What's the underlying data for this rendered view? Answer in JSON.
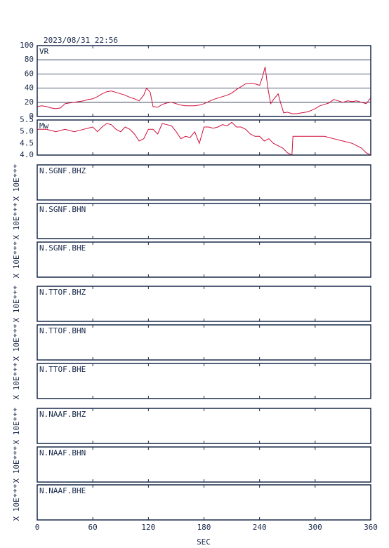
{
  "timestamp": "2023/08/31 22:56",
  "x_axis": {
    "label": "SEC",
    "xlim": [
      0,
      360
    ],
    "xticks": [
      0,
      60,
      120,
      180,
      240,
      300,
      360
    ]
  },
  "chart_data": [
    {
      "type": "line",
      "ylabel": "VR",
      "color": "#d0103c",
      "grid": true,
      "ylim": [
        0,
        100
      ],
      "yticks": [
        0,
        20,
        40,
        60,
        80,
        100
      ],
      "x": [
        0,
        5,
        10,
        15,
        20,
        25,
        30,
        35,
        40,
        45,
        50,
        55,
        60,
        65,
        70,
        75,
        80,
        85,
        90,
        95,
        100,
        105,
        110,
        115,
        118,
        122,
        125,
        130,
        135,
        140,
        145,
        150,
        155,
        160,
        165,
        170,
        175,
        180,
        185,
        190,
        195,
        200,
        205,
        210,
        215,
        220,
        225,
        230,
        235,
        240,
        243,
        246,
        249,
        252,
        255,
        260,
        263,
        266,
        270,
        275,
        280,
        285,
        290,
        295,
        300,
        305,
        310,
        315,
        320,
        325,
        330,
        335,
        340,
        345,
        350,
        355,
        360
      ],
      "values": [
        14,
        15,
        14,
        12,
        11,
        12,
        18,
        19,
        20,
        21,
        22,
        24,
        25,
        28,
        32,
        35,
        36,
        34,
        32,
        30,
        27,
        25,
        22,
        30,
        40,
        34,
        14,
        13,
        17,
        19,
        20,
        18,
        16,
        15,
        15,
        15,
        16,
        18,
        21,
        24,
        26,
        28,
        30,
        33,
        38,
        42,
        46,
        47,
        46,
        44,
        55,
        70,
        40,
        18,
        24,
        32,
        18,
        5,
        6,
        4,
        4,
        5,
        6,
        8,
        11,
        15,
        17,
        19,
        24,
        22,
        20,
        22,
        21,
        22,
        20,
        18,
        26
      ]
    },
    {
      "type": "line",
      "ylabel": "Mw",
      "color": "#d0103c",
      "grid": false,
      "ylim": [
        4,
        5.5
      ],
      "yticks": [
        {
          "value": 4,
          "label": "4.0"
        },
        4.5,
        {
          "value": 5,
          "label": "5.0"
        },
        5.5
      ],
      "x": [
        0,
        10,
        20,
        30,
        40,
        50,
        60,
        65,
        70,
        75,
        80,
        85,
        90,
        95,
        100,
        105,
        110,
        115,
        120,
        125,
        130,
        135,
        140,
        145,
        150,
        155,
        160,
        165,
        170,
        175,
        180,
        185,
        190,
        195,
        200,
        205,
        210,
        215,
        220,
        225,
        230,
        235,
        240,
        245,
        250,
        255,
        260,
        265,
        270,
        275,
        276,
        280,
        290,
        300,
        310,
        320,
        330,
        340,
        345,
        350,
        355,
        360
      ],
      "values": [
        5.1,
        5.1,
        5.0,
        5.1,
        5.0,
        5.1,
        5.2,
        5.0,
        5.2,
        5.35,
        5.3,
        5.1,
        5.0,
        5.2,
        5.1,
        4.9,
        4.6,
        4.7,
        5.1,
        5.1,
        4.9,
        5.35,
        5.3,
        5.25,
        5.0,
        4.7,
        4.8,
        4.75,
        5.0,
        4.5,
        5.2,
        5.2,
        5.15,
        5.2,
        5.3,
        5.25,
        5.4,
        5.2,
        5.2,
        5.1,
        4.9,
        4.8,
        4.8,
        4.6,
        4.7,
        4.5,
        4.4,
        4.3,
        4.1,
        4.0,
        4.8,
        4.8,
        4.8,
        4.8,
        4.8,
        4.7,
        4.6,
        4.5,
        4.4,
        4.3,
        4.1,
        4.0
      ]
    }
  ],
  "channels": [
    {
      "station": "N.SGNF.BHZ",
      "scale_label": "X 10E***"
    },
    {
      "station": "N.SGNF.BHN",
      "scale_label": "X 10E***"
    },
    {
      "station": "N.SGNF.BHE",
      "scale_label": "X 10E***"
    },
    {
      "station": "N.TTOF.BHZ",
      "scale_label": "X 10E***"
    },
    {
      "station": "N.TTOF.BHN",
      "scale_label": "X 10E***"
    },
    {
      "station": "N.TTOF.BHE",
      "scale_label": "X 10E***"
    },
    {
      "station": "N.NAAF.BHZ",
      "scale_label": "X 10E***"
    },
    {
      "station": "N.NAAF.BHN",
      "scale_label": "X 10E***"
    },
    {
      "station": "N.NAAF.BHE",
      "scale_label": "X 10E***"
    }
  ]
}
